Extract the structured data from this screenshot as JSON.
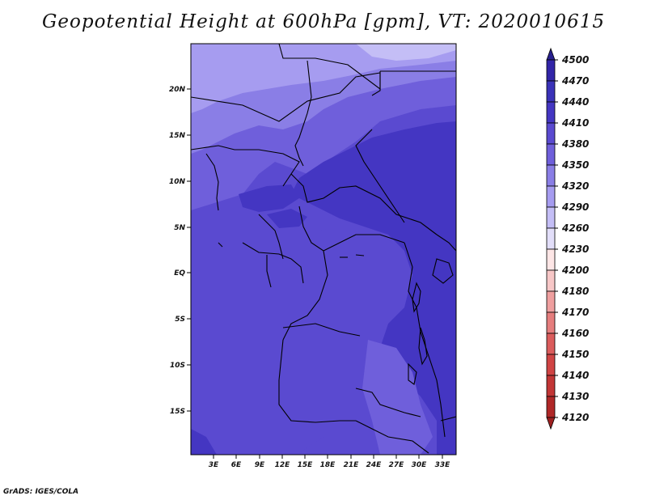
{
  "title": "Geopotential Height at 600hPa [gpm], VT: 2020010615",
  "credit": "GrADS: IGES/COLA",
  "map": {
    "lat_labels": [
      "20N",
      "15N",
      "10N",
      "5N",
      "EQ",
      "5S",
      "10S",
      "15S"
    ],
    "lon_labels": [
      "3E",
      "6E",
      "9E",
      "12E",
      "15E",
      "18E",
      "21E",
      "24E",
      "27E",
      "30E",
      "33E"
    ],
    "lat_range": [
      -20,
      25
    ],
    "lon_range": [
      0,
      34
    ]
  },
  "colorbar": {
    "levels": [
      "4500",
      "4470",
      "4440",
      "4410",
      "4380",
      "4350",
      "4320",
      "4290",
      "4260",
      "4230",
      "4200",
      "4180",
      "4170",
      "4160",
      "4150",
      "4140",
      "4130",
      "4120"
    ],
    "colors": [
      "#28208e",
      "#3225a8",
      "#3a32b8",
      "#4436c2",
      "#5a4ad0",
      "#6f5fdb",
      "#8a7ee6",
      "#a69cf0",
      "#c4bef6",
      "#e2def9",
      "#fde6e6",
      "#f7c7c7",
      "#ef9f9f",
      "#e57d7d",
      "#db5c5c",
      "#d04444",
      "#c23636",
      "#b02828",
      "#9e2020"
    ]
  },
  "colors": {
    "c4380": "#5a4ad0",
    "c4350": "#6f5fdb",
    "c4320": "#8a7ee6",
    "c4290": "#a69cf0",
    "c4260": "#c4bef6",
    "c4410": "#4436c2"
  }
}
